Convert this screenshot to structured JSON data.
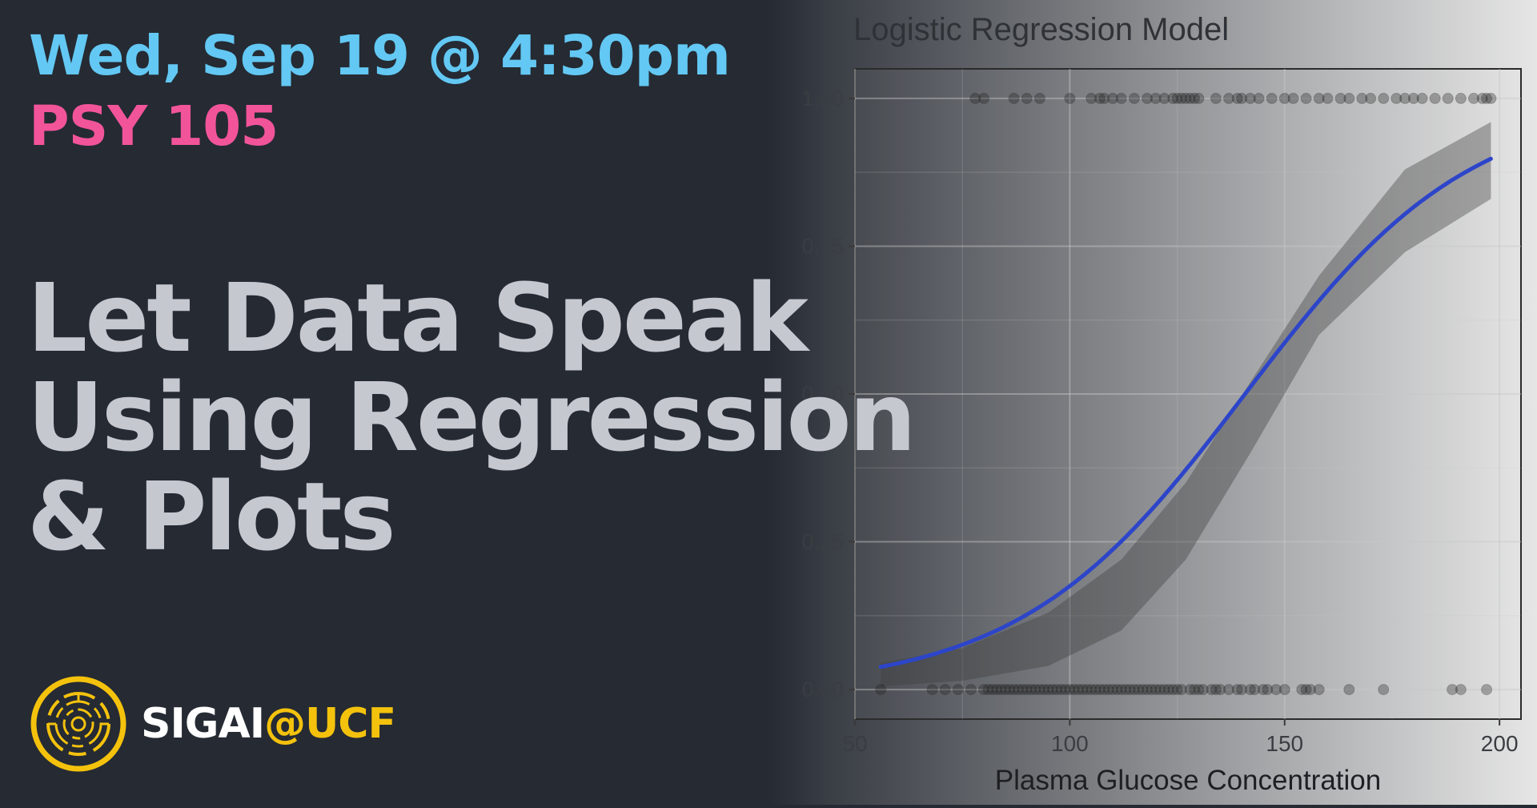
{
  "event": {
    "date": "Wed, Sep 19 @ 4:30pm",
    "course": "PSY 105",
    "title_lines": [
      "Let Data Speak",
      "Using Regression",
      "& Plots"
    ],
    "brand_prefix": "SIGAI",
    "brand_suffix": "@UCF"
  },
  "colors": {
    "background": "#252a33",
    "date": "#63c8f3",
    "course": "#f2549a",
    "title": "#c6c8d0",
    "brand_accent": "#f4c20d",
    "curve": "#2d45c9"
  },
  "icons": {
    "logo": "circuit-circle-logo-icon"
  },
  "chart_data": {
    "type": "scatter",
    "title": "Logistic Regression Model",
    "xlabel": "Plasma Glucose Concentration",
    "ylabel": "",
    "xlim": [
      50,
      205
    ],
    "ylim": [
      -0.05,
      1.05
    ],
    "x_ticks": [
      50,
      100,
      150,
      200
    ],
    "y_ticks": [
      "0.00",
      "0.25",
      "0.50",
      "0.75",
      "1.00"
    ],
    "grid": true,
    "series": [
      {
        "kind": "points",
        "y": 1,
        "x": [
          78,
          80,
          87,
          90,
          93,
          100,
          105,
          107,
          108,
          110,
          112,
          115,
          118,
          120,
          122,
          124,
          125,
          126,
          127,
          128,
          129,
          130,
          134,
          137,
          139,
          140,
          142,
          144,
          147,
          150,
          152,
          155,
          158,
          160,
          163,
          165,
          168,
          170,
          173,
          176,
          178,
          180,
          182,
          185,
          188,
          191,
          194,
          196,
          197,
          198
        ]
      },
      {
        "kind": "points",
        "y": 0,
        "x": [
          56,
          68,
          71,
          74,
          77,
          80,
          81,
          82,
          83,
          84,
          85,
          86,
          87,
          88,
          89,
          90,
          91,
          92,
          93,
          94,
          95,
          96,
          97,
          98,
          99,
          100,
          101,
          102,
          103,
          104,
          105,
          106,
          107,
          108,
          109,
          110,
          111,
          112,
          113,
          114,
          115,
          116,
          117,
          118,
          119,
          120,
          121,
          122,
          123,
          124,
          125,
          126,
          128,
          129,
          130,
          131,
          133,
          134,
          135,
          137,
          139,
          140,
          142,
          143,
          145,
          146,
          148,
          150,
          154,
          155,
          156,
          158,
          165,
          173,
          189,
          191,
          197
        ]
      },
      {
        "kind": "logistic-fit",
        "x_range": [
          56,
          198
        ],
        "intercept": -5.35,
        "slope": 0.038,
        "ci_lower": [
          0.005,
          0.015,
          0.04,
          0.1,
          0.22,
          0.4,
          0.6,
          0.74,
          0.83
        ],
        "ci_upper": [
          0.045,
          0.07,
          0.13,
          0.22,
          0.35,
          0.52,
          0.7,
          0.88,
          0.96
        ],
        "ci_x": [
          56,
          75,
          95,
          112,
          127,
          142,
          158,
          178,
          198
        ]
      }
    ]
  }
}
